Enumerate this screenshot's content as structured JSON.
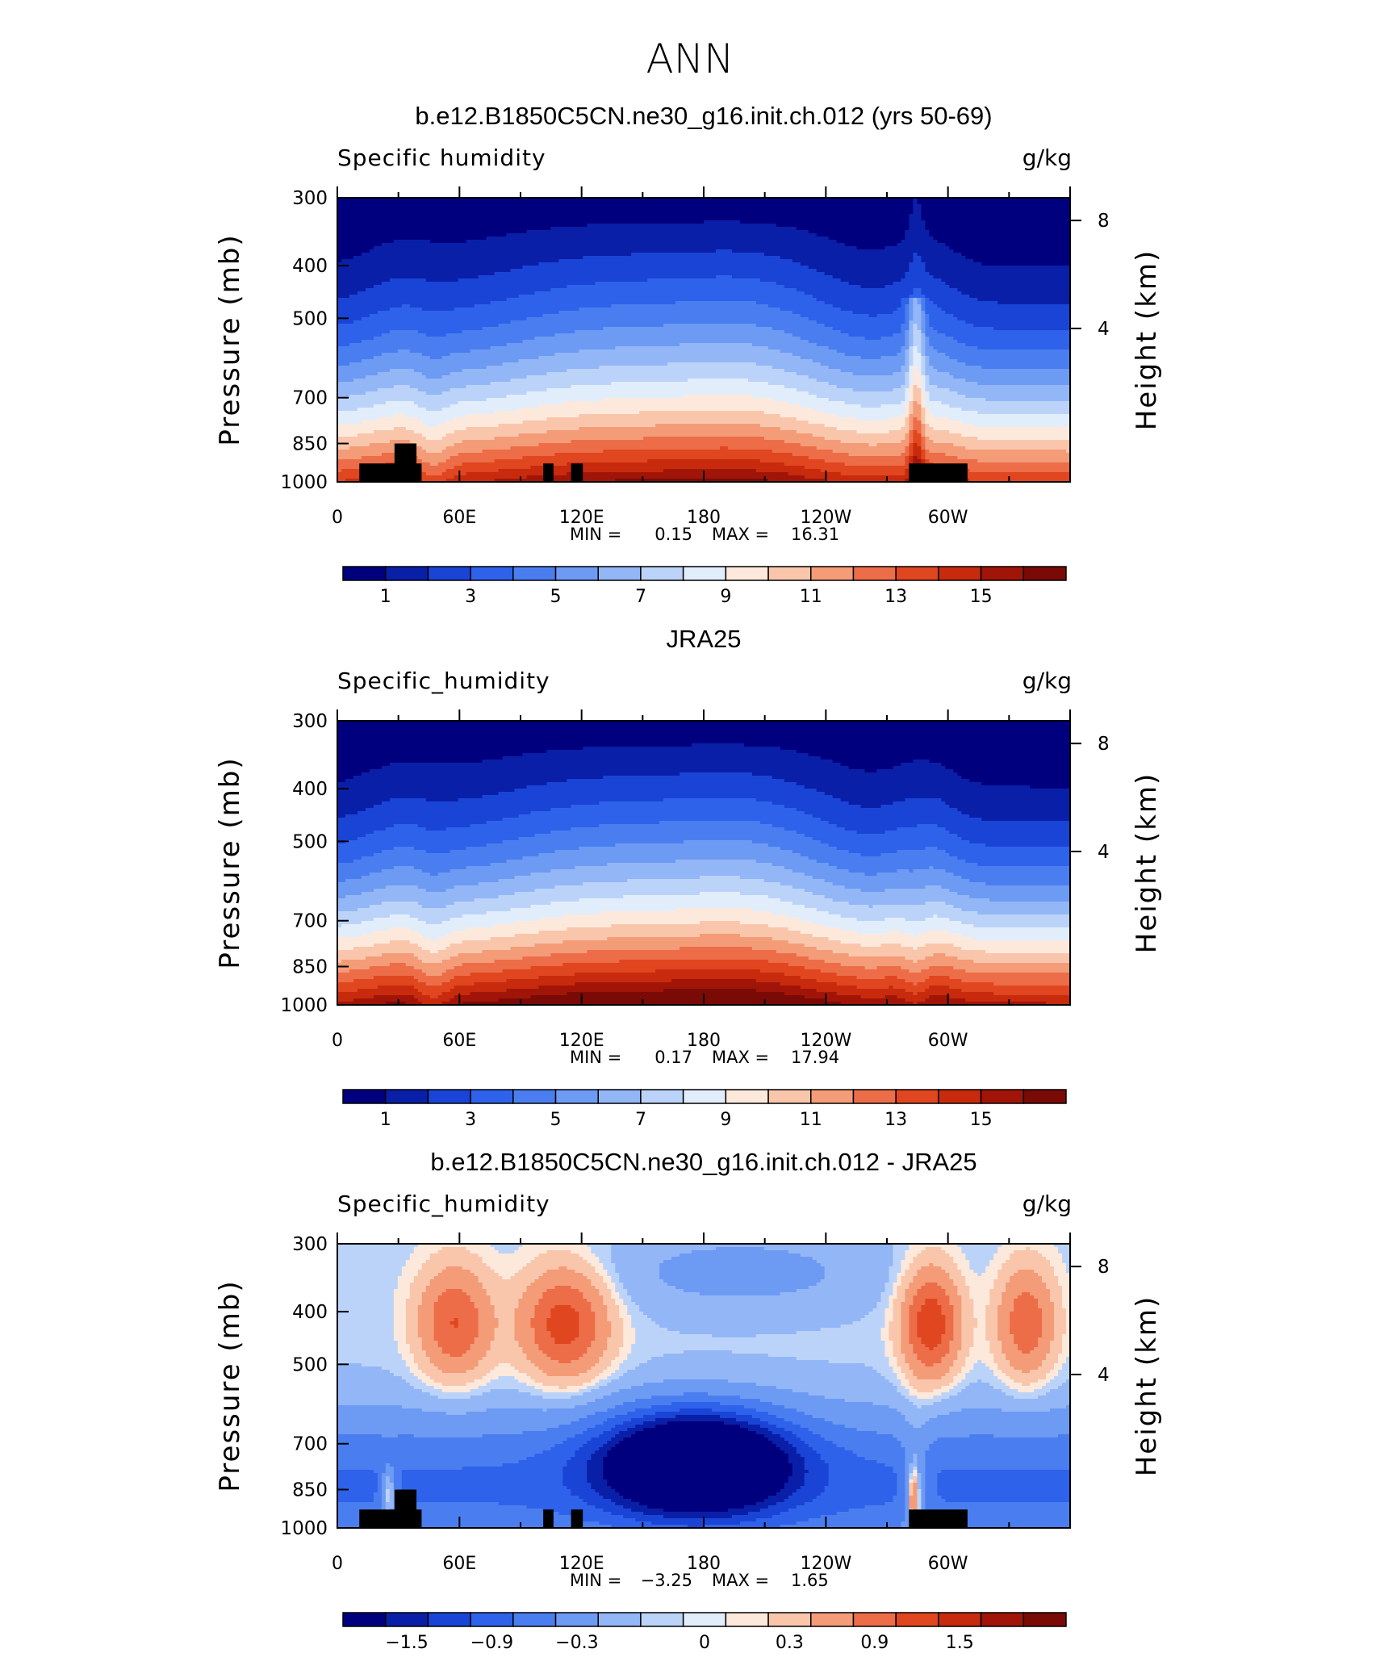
{
  "page": {
    "title": "ANN"
  },
  "panels": [
    {
      "title": "b.e12.B1850C5CN.ne30_g16.init.ch.012 (yrs 50-69)",
      "left_label": "Specific humidity",
      "right_label": "g/kg",
      "y_label": "Pressure (mb)",
      "y2_label": "Height (km)",
      "y_ticks": [
        "300",
        "400",
        "500",
        "700",
        "850",
        "1000"
      ],
      "y2_ticks": [
        "8",
        "4"
      ],
      "x_ticks": [
        "0",
        "60E",
        "120E",
        "180",
        "120W",
        "60W"
      ],
      "stats": {
        "min_label": "MIN =",
        "min": "0.15",
        "max_label": "MAX =",
        "max": "16.31"
      },
      "colorbar_labels": [
        "1",
        "3",
        "5",
        "7",
        "9",
        "11",
        "13",
        "15"
      ],
      "scale": "abs"
    },
    {
      "title": "JRA25",
      "left_label": "Specific_humidity",
      "right_label": "g/kg",
      "y_label": "Pressure (mb)",
      "y2_label": "Height (km)",
      "y_ticks": [
        "300",
        "400",
        "500",
        "700",
        "850",
        "1000"
      ],
      "y2_ticks": [
        "8",
        "4"
      ],
      "x_ticks": [
        "0",
        "60E",
        "120E",
        "180",
        "120W",
        "60W"
      ],
      "stats": {
        "min_label": "MIN =",
        "min": "0.17",
        "max_label": "MAX =",
        "max": "17.94"
      },
      "colorbar_labels": [
        "1",
        "3",
        "5",
        "7",
        "9",
        "11",
        "13",
        "15"
      ],
      "scale": "abs"
    },
    {
      "title": "b.e12.B1850C5CN.ne30_g16.init.ch.012 - JRA25",
      "left_label": "Specific_humidity",
      "right_label": "g/kg",
      "y_label": "Pressure (mb)",
      "y2_label": "Height (km)",
      "y_ticks": [
        "300",
        "400",
        "500",
        "700",
        "850",
        "1000"
      ],
      "y2_ticks": [
        "8",
        "4"
      ],
      "x_ticks": [
        "0",
        "60E",
        "120E",
        "180",
        "120W",
        "60W"
      ],
      "stats": {
        "min_label": "MIN =",
        "min": "−3.25",
        "max_label": "MAX =",
        "max": "1.65"
      },
      "colorbar_labels": [
        "−1.5",
        "−0.9",
        "−0.3",
        "0",
        "0.3",
        "0.9",
        "1.5"
      ],
      "scale": "diff"
    }
  ],
  "colors": {
    "palette": [
      "#00007f",
      "#0a1fa8",
      "#1a44d6",
      "#2e62ea",
      "#4a7ef0",
      "#6d9af3",
      "#93b6f6",
      "#bcd3f9",
      "#e2edfc",
      "#fde9dc",
      "#f9c6ab",
      "#f49b78",
      "#ec6d48",
      "#e0461f",
      "#c72a0c",
      "#a11509",
      "#7a0a06"
    ],
    "topography": "#000000"
  },
  "chart_data": [
    {
      "type": "heatmap",
      "title": "b.e12.B1850C5CN.ne30_g16.init.ch.012 (yrs 50-69)",
      "xlabel": "",
      "ylabel": "Pressure (mb)",
      "y2label": "Height (km)",
      "x_ticks": [
        "0",
        "60E",
        "120E",
        "180",
        "120W",
        "60W"
      ],
      "y_ticks": [
        300,
        400,
        500,
        700,
        850,
        1000
      ],
      "y2_ticks": [
        8,
        4
      ],
      "units": "g/kg",
      "contour_levels": [
        1,
        2,
        3,
        4,
        5,
        6,
        7,
        8,
        9,
        10,
        11,
        12,
        13,
        14,
        15,
        16
      ],
      "min": 0.15,
      "max": 16.31
    },
    {
      "type": "heatmap",
      "title": "JRA25",
      "xlabel": "",
      "ylabel": "Pressure (mb)",
      "y2label": "Height (km)",
      "x_ticks": [
        "0",
        "60E",
        "120E",
        "180",
        "120W",
        "60W"
      ],
      "y_ticks": [
        300,
        400,
        500,
        700,
        850,
        1000
      ],
      "y2_ticks": [
        8,
        4
      ],
      "units": "g/kg",
      "contour_levels": [
        1,
        2,
        3,
        4,
        5,
        6,
        7,
        8,
        9,
        10,
        11,
        12,
        13,
        14,
        15,
        16
      ],
      "min": 0.17,
      "max": 17.94
    },
    {
      "type": "heatmap",
      "title": "b.e12.B1850C5CN.ne30_g16.init.ch.012 - JRA25",
      "xlabel": "",
      "ylabel": "Pressure (mb)",
      "y2label": "Height (km)",
      "x_ticks": [
        "0",
        "60E",
        "120E",
        "180",
        "120W",
        "60W"
      ],
      "y_ticks": [
        300,
        400,
        500,
        700,
        850,
        1000
      ],
      "y2_ticks": [
        8,
        4
      ],
      "units": "g/kg",
      "contour_levels": [
        -1.8,
        -1.5,
        -1.2,
        -0.9,
        -0.6,
        -0.3,
        -0.1,
        0,
        0.1,
        0.3,
        0.6,
        0.9,
        1.2,
        1.5,
        1.8
      ],
      "min": -3.25,
      "max": 1.65
    }
  ]
}
